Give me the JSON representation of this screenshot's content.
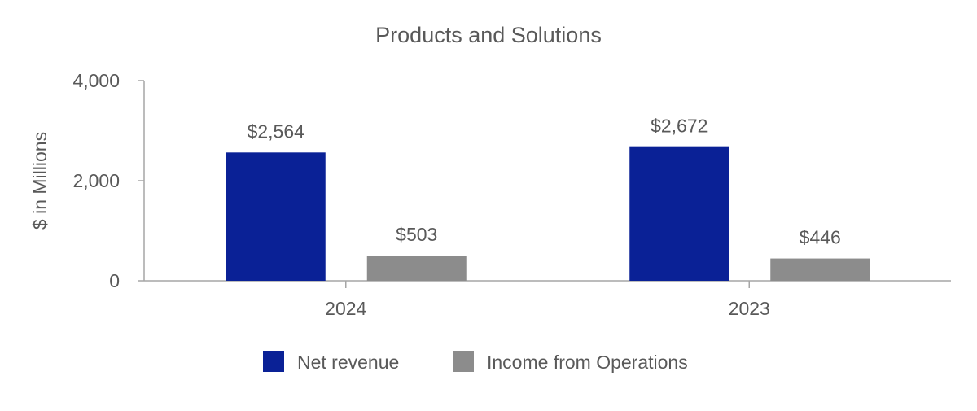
{
  "chart_data": {
    "type": "bar",
    "title": "Products and Solutions",
    "xlabel": "",
    "ylabel": "$ in Millions",
    "categories": [
      "2024",
      "2023"
    ],
    "series": [
      {
        "name": "Net revenue",
        "color": "#0a2196",
        "values": [
          2564,
          2672
        ],
        "labels": [
          "$2,564",
          "$2,672"
        ]
      },
      {
        "name": "Income from Operations",
        "color": "#8c8c8c",
        "values": [
          503,
          446
        ],
        "labels": [
          "$503",
          "$446"
        ]
      }
    ],
    "ylim": [
      0,
      4000
    ],
    "yticks": [
      0,
      2000,
      4000
    ],
    "ytick_labels": [
      "0",
      "2,000",
      "4,000"
    ],
    "grid": false,
    "legend_position": "bottom"
  }
}
